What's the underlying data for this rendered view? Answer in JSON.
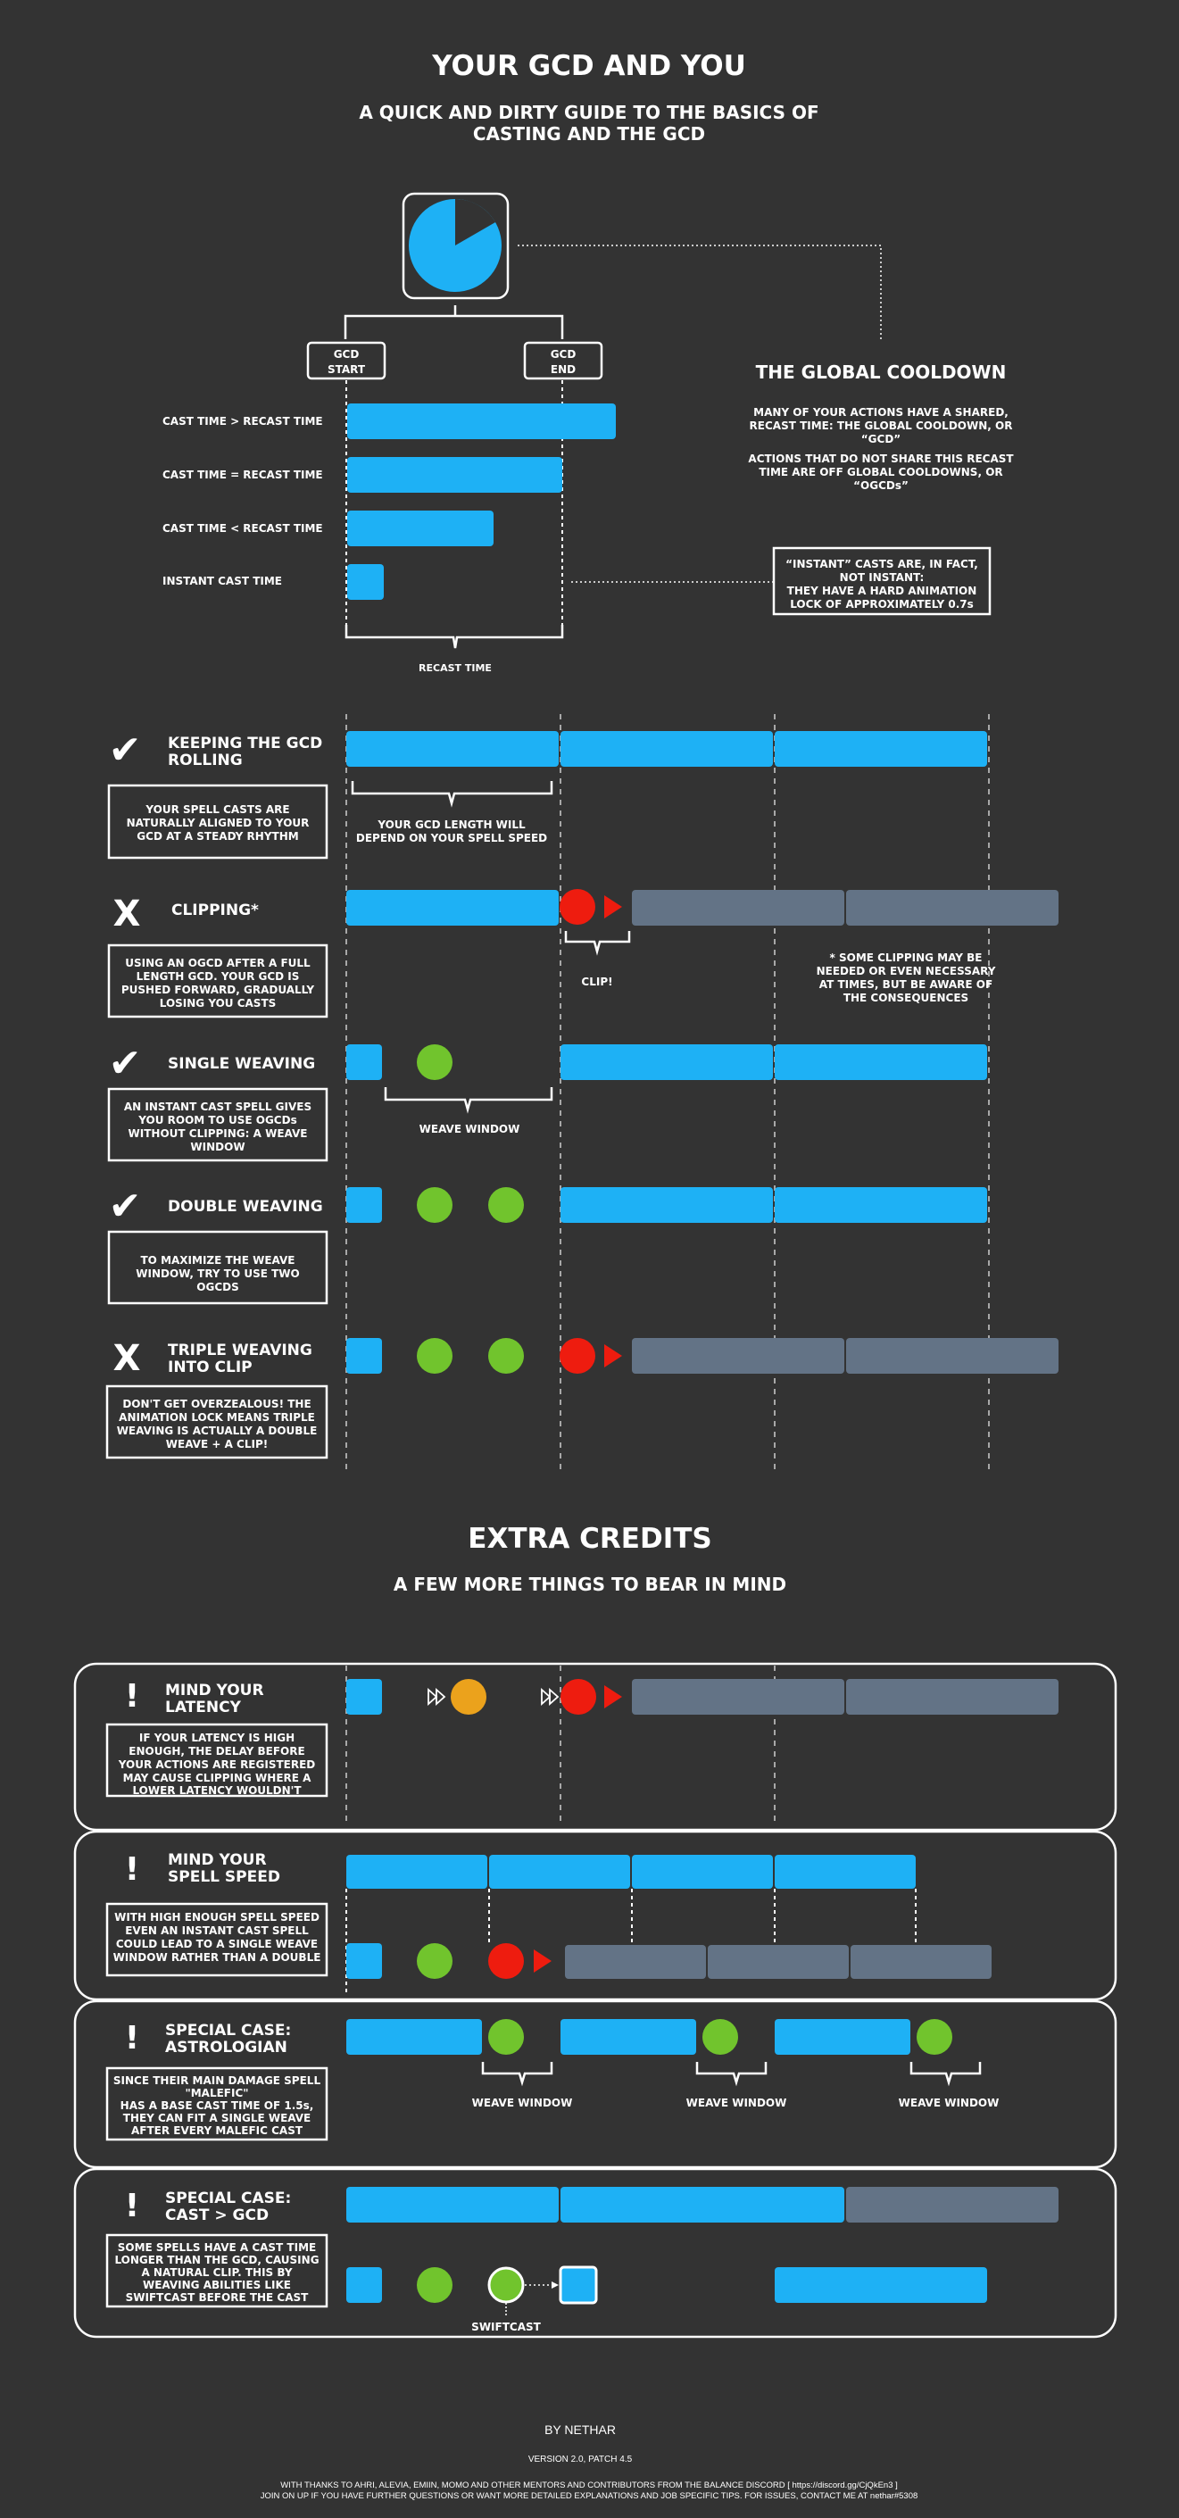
{
  "header": {
    "title": "YOUR GCD AND YOU",
    "subtitle_line1": "A QUICK AND DIRTY GUIDE TO THE BASICS OF",
    "subtitle_line2": "CASTING AND THE GCD"
  },
  "gcd_intro": {
    "gcd_start_1": "GCD",
    "gcd_start_2": "START",
    "gcd_end_1": "GCD",
    "gcd_end_2": "END",
    "row_gt": "CAST TIME > RECAST TIME",
    "row_eq": "CAST TIME = RECAST TIME",
    "row_lt": "CAST TIME < RECAST TIME",
    "row_instant": "INSTANT CAST TIME",
    "recast_label": "RECAST TIME",
    "gc_title": "THE GLOBAL COOLDOWN",
    "gc_p1_l1": "MANY OF YOUR ACTIONS HAVE A SHARED,",
    "gc_p1_l2": "RECAST TIME: THE GLOBAL COOLDOWN, OR",
    "gc_p1_l3": "“GCD”",
    "gc_p2_l1": "ACTIONS THAT DO NOT SHARE THIS RECAST",
    "gc_p2_l2": "TIME ARE OFF GLOBAL COOLDOWNS, OR",
    "gc_p2_l3": "“OGCDs”",
    "instant_note_l1": "“INSTANT” CASTS ARE, IN FACT,",
    "instant_note_l2": "NOT INSTANT:",
    "instant_note_l3": "THEY HAVE A HARD ANIMATION",
    "instant_note_l4": "LOCK OF APPROXIMATELY 0.7s"
  },
  "sections": {
    "rolling_title_1": "KEEPING THE GCD",
    "rolling_title_2": "ROLLING",
    "rolling_desc_1": "YOUR SPELL CASTS ARE",
    "rolling_desc_2": "NATURALLY ALIGNED TO YOUR",
    "rolling_desc_3": "GCD AT A STEADY RHYTHM",
    "rolling_note_1": "YOUR GCD LENGTH WILL",
    "rolling_note_2": "DEPEND ON YOUR SPELL SPEED",
    "clip_title": "CLIPPING*",
    "clip_desc_1": "USING AN OGCD AFTER A FULL",
    "clip_desc_2": "LENGTH GCD. YOUR GCD IS",
    "clip_desc_3": "PUSHED FORWARD, GRADUALLY",
    "clip_desc_4": "LOSING YOU CASTS",
    "clip_label": "CLIP!",
    "clip_note_1": "* SOME CLIPPING MAY BE",
    "clip_note_2": "NEEDED OR EVEN NECESSARY",
    "clip_note_3": "AT TIMES, BUT BE AWARE OF",
    "clip_note_4": "THE CONSEQUENCES",
    "single_title": "SINGLE WEAVING",
    "single_desc_1": "AN INSTANT CAST SPELL GIVES",
    "single_desc_2": "YOU ROOM TO USE  OGCDs",
    "single_desc_3": "WITHOUT CLIPPING: A WEAVE",
    "single_desc_4": "WINDOW",
    "weave_window": "WEAVE WINDOW",
    "double_title": "DOUBLE WEAVING",
    "double_desc_1": "TO MAXIMIZE THE WEAVE",
    "double_desc_2": "WINDOW, TRY TO USE TWO",
    "double_desc_3": "OGCDS",
    "triple_title_1": "TRIPLE WEAVING",
    "triple_title_2": "INTO CLIP",
    "triple_desc_1": "DON'T GET OVERZEALOUS! THE",
    "triple_desc_2": "ANIMATION LOCK MEANS TRIPLE",
    "triple_desc_3": "WEAVING IS ACTUALLY A DOUBLE",
    "triple_desc_4": "WEAVE + A CLIP!"
  },
  "extra": {
    "title": "EXTRA CREDITS",
    "subtitle": "A FEW MORE THINGS TO BEAR IN MIND",
    "latency_title_1": "MIND YOUR",
    "latency_title_2": "LATENCY",
    "latency_desc_1": "IF YOUR LATENCY IS HIGH",
    "latency_desc_2": "ENOUGH, THE DELAY BEFORE",
    "latency_desc_3": "YOUR ACTIONS ARE REGISTERED",
    "latency_desc_4": "MAY CAUSE CLIPPING WHERE A",
    "latency_desc_5": "LOWER LATENCY WOULDN'T",
    "ss_title_1": "MIND YOUR",
    "ss_title_2": "SPELL SPEED",
    "ss_desc_1": "WITH HIGH ENOUGH SPELL SPEED",
    "ss_desc_2": "EVEN AN INSTANT CAST SPELL",
    "ss_desc_3": "COULD LEAD TO A SINGLE WEAVE",
    "ss_desc_4": "WINDOW RATHER THAN A DOUBLE",
    "ast_title_1": "SPECIAL CASE:",
    "ast_title_2": "ASTROLOGIAN",
    "ast_desc_1": "SINCE THEIR MAIN DAMAGE SPELL",
    "ast_desc_2": "\"MALEFIC\"",
    "ast_desc_3": "HAS A BASE CAST TIME OF 1.5s,",
    "ast_desc_4": "THEY CAN FIT A SINGLE WEAVE",
    "ast_desc_5": "AFTER EVERY MALEFIC CAST",
    "cast_title_1": "SPECIAL CASE:",
    "cast_title_2": "CAST > GCD",
    "cast_desc_1": "SOME SPELLS HAVE A CAST TIME",
    "cast_desc_2": "LONGER THAN THE GCD, CAUSING",
    "cast_desc_3": "A NATURAL CLIP. THIS BY",
    "cast_desc_4": "WEAVING ABILITIES LIKE",
    "cast_desc_5": "SWIFTCAST BEFORE THE CAST",
    "swiftcast": "SWIFTCAST"
  },
  "footer": {
    "author": "BY NETHAR",
    "version": "VERSION 2.0, PATCH 4.5",
    "thanks_1": "WITH THANKS TO AHRI, ALEVIA, EMIIN, MOMO AND OTHER MENTORS AND CONTRIBUTORS FROM THE BALANCE DISCORD [ https://discord.gg/CjQkEn3 ]",
    "thanks_2": "JOIN ON UP IF YOU HAVE FURTHER QUESTIONS OR WANT MORE DETAILED EXPLANATIONS AND JOB SPECIFIC TIPS. FOR ISSUES, CONTACT ME AT nethar#5308"
  },
  "glyphs": {
    "check": "✔",
    "cross": "X",
    "bang": "!"
  },
  "colors": {
    "background": "#333333",
    "gcd_blue": "#1eb1f5",
    "lost_grey": "#637386",
    "ogcd_green": "#71c42d",
    "clip_red": "#ee1c0f",
    "latency_orange": "#eba21c"
  }
}
